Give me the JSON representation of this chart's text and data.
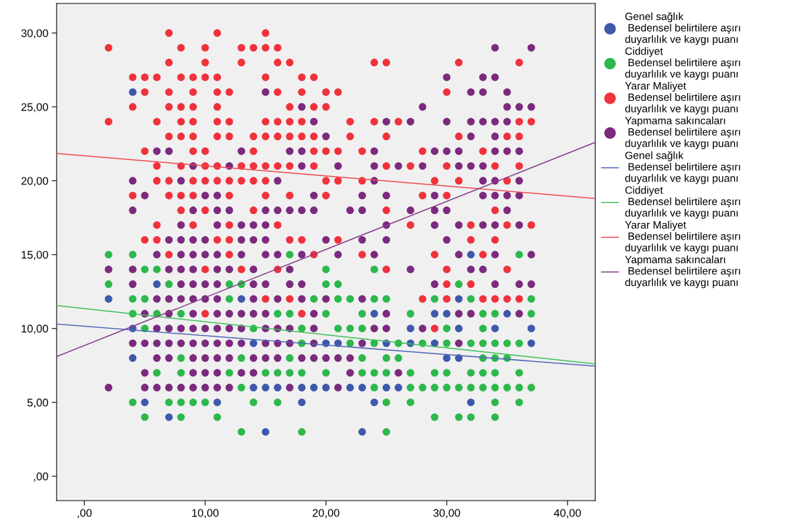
{
  "chart_data": {
    "type": "scatter",
    "xlim": [
      -2.3,
      42.3
    ],
    "ylim": [
      -1.65,
      32
    ],
    "xticks": [
      {
        "value": 0,
        "label": ",00"
      },
      {
        "value": 10,
        "label": "10,00"
      },
      {
        "value": 20,
        "label": "20,00"
      },
      {
        "value": 30,
        "label": "30,00"
      },
      {
        "value": 40,
        "label": "40,00"
      }
    ],
    "yticks": [
      {
        "value": 0,
        "label": ",00"
      },
      {
        "value": 5,
        "label": "5,00"
      },
      {
        "value": 10,
        "label": "10,00"
      },
      {
        "value": 15,
        "label": "15,00"
      },
      {
        "value": 20,
        "label": "20,00"
      },
      {
        "value": 25,
        "label": "25,00"
      },
      {
        "value": 30,
        "label": "30,00"
      }
    ],
    "grid": false,
    "legend": "right",
    "series": [
      {
        "name": "Genel sağlık\n Bedensel belirtilere aşırı\nduyarlılık ve kaygı puanı",
        "marker": "circle",
        "color": "#3e58ac",
        "x": [
          4,
          32,
          6,
          2,
          13,
          31,
          24,
          29,
          30,
          35,
          4,
          27,
          31,
          34,
          37,
          14,
          20,
          21,
          25,
          27,
          29,
          37,
          4,
          30,
          31,
          14,
          15,
          16,
          18,
          19,
          20,
          22,
          23,
          25,
          26,
          5,
          11,
          18,
          24,
          32,
          7,
          15,
          23
        ],
        "values": [
          26,
          15,
          13,
          12,
          12,
          12,
          11,
          11,
          11,
          11,
          10,
          10,
          10,
          10,
          10,
          9,
          9,
          9,
          9,
          9,
          9,
          9,
          8,
          8,
          8,
          6,
          6,
          6,
          6,
          6,
          6,
          6,
          6,
          6,
          6,
          5,
          5,
          5,
          5,
          5,
          4,
          3,
          3
        ]
      },
      {
        "name": "Ciddiyet\n Bedensel belirtilere aşırı\nduyarlılık ve kaygı puanı",
        "marker": "circle",
        "color": "#2db84b",
        "x": [
          2,
          4,
          17,
          36,
          5,
          6,
          20,
          24,
          2,
          7,
          12,
          13,
          20,
          21,
          31,
          4,
          5,
          12,
          19,
          21,
          22,
          24,
          25,
          29,
          32,
          37,
          4,
          6,
          8,
          16,
          17,
          20,
          23,
          27,
          33,
          34,
          37,
          5,
          14,
          18,
          21,
          22,
          23,
          30,
          33,
          18,
          22,
          24,
          26,
          28,
          30,
          32,
          33,
          34,
          35,
          36,
          8,
          13,
          17,
          23,
          25,
          26,
          33,
          34,
          35,
          6,
          8,
          12,
          15,
          16,
          17,
          18,
          20,
          23,
          24,
          25,
          27,
          29,
          30,
          32,
          33,
          34,
          36,
          13,
          24,
          27,
          28,
          29,
          30,
          31,
          32,
          33,
          34,
          35,
          36,
          37,
          4,
          7,
          8,
          9,
          10,
          14,
          16,
          25,
          27,
          34,
          36,
          5,
          8,
          11,
          29,
          31,
          32,
          34,
          13,
          18,
          25
        ],
        "values": [
          15,
          15,
          15,
          15,
          14,
          14,
          14,
          14,
          13,
          13,
          13,
          13,
          13,
          13,
          13,
          12,
          12,
          12,
          12,
          12,
          12,
          12,
          12,
          12,
          12,
          12,
          11,
          11,
          11,
          11,
          11,
          11,
          11,
          11,
          11,
          11,
          11,
          10,
          10,
          10,
          10,
          10,
          10,
          10,
          10,
          9,
          9,
          9,
          9,
          9,
          9,
          9,
          9,
          9,
          9,
          9,
          8,
          8,
          8,
          8,
          8,
          8,
          8,
          8,
          8,
          7,
          7,
          7,
          7,
          7,
          7,
          7,
          7,
          7,
          7,
          7,
          7,
          7,
          7,
          7,
          7,
          7,
          7,
          6,
          6,
          6,
          6,
          6,
          6,
          6,
          6,
          6,
          6,
          6,
          6,
          6,
          5,
          5,
          5,
          5,
          5,
          5,
          5,
          5,
          5,
          5,
          5,
          4,
          4,
          4,
          4,
          4,
          4,
          4,
          3,
          3,
          3
        ]
      },
      {
        "name": "Yarar Maliyet\n Bedensel belirtilere aşırı\nduyarlılık ve kaygı puanı",
        "marker": "circle",
        "color": "#f0323c",
        "x": [
          7,
          11,
          15,
          2,
          8,
          10,
          13,
          14,
          15,
          16,
          7,
          10,
          13,
          16,
          17,
          24,
          25,
          31,
          36,
          4,
          5,
          6,
          8,
          9,
          10,
          11,
          15,
          18,
          19,
          5,
          7,
          9,
          11,
          12,
          16,
          18,
          20,
          21,
          30,
          4,
          7,
          8,
          9,
          11,
          17,
          19,
          20,
          2,
          6,
          8,
          9,
          11,
          12,
          15,
          16,
          17,
          18,
          22,
          24,
          26,
          36,
          37,
          7,
          8,
          9,
          11,
          12,
          14,
          15,
          16,
          17,
          18,
          19,
          22,
          25,
          31,
          35,
          36,
          5,
          9,
          10,
          14,
          19,
          20,
          21,
          23,
          28,
          33,
          6,
          8,
          10,
          11,
          13,
          14,
          15,
          16,
          17,
          19,
          25,
          27,
          30,
          34,
          36,
          6,
          7,
          9,
          10,
          11,
          12,
          13,
          14,
          15,
          20,
          21,
          23,
          29,
          31,
          35,
          4,
          7,
          8,
          9,
          12,
          15,
          17,
          20,
          28,
          30,
          8,
          10,
          14,
          25,
          34,
          6,
          9,
          12,
          16,
          27,
          32,
          35,
          37,
          5,
          6,
          11,
          12,
          17,
          18,
          21,
          32,
          34,
          7,
          12,
          19,
          23,
          29,
          33,
          10,
          13,
          16,
          25,
          30,
          35,
          30,
          32,
          15,
          17,
          28,
          30,
          33,
          34,
          35,
          36,
          10,
          18,
          29
        ],
        "values": [
          30,
          30,
          30,
          29,
          29,
          29,
          29,
          29,
          29,
          29,
          28,
          28,
          28,
          28,
          28,
          28,
          28,
          28,
          28,
          27,
          27,
          27,
          27,
          27,
          27,
          27,
          27,
          27,
          27,
          26,
          26,
          26,
          26,
          26,
          26,
          26,
          26,
          26,
          26,
          25,
          25,
          25,
          25,
          25,
          25,
          25,
          25,
          24,
          24,
          24,
          24,
          24,
          24,
          24,
          24,
          24,
          24,
          24,
          24,
          24,
          24,
          24,
          23,
          23,
          23,
          23,
          23,
          23,
          23,
          23,
          23,
          23,
          23,
          23,
          23,
          23,
          23,
          23,
          22,
          22,
          22,
          22,
          22,
          22,
          22,
          22,
          22,
          22,
          21,
          21,
          21,
          21,
          21,
          21,
          21,
          21,
          21,
          21,
          21,
          21,
          21,
          21,
          21,
          20,
          20,
          20,
          20,
          20,
          20,
          20,
          20,
          20,
          20,
          20,
          20,
          20,
          20,
          20,
          19,
          19,
          19,
          19,
          19,
          19,
          19,
          19,
          19,
          19,
          18,
          18,
          18,
          18,
          18,
          17,
          17,
          17,
          17,
          17,
          17,
          17,
          17,
          16,
          16,
          16,
          16,
          16,
          16,
          16,
          16,
          16,
          15,
          15,
          15,
          15,
          15,
          15,
          14,
          14,
          14,
          14,
          14,
          14,
          13,
          13,
          12,
          12,
          12,
          12,
          12,
          12,
          12,
          12,
          11,
          11,
          10
        ]
      },
      {
        "name": "Yapmama sakıncaları\n Bedensel belirtilere aşırı\nduyarlılık ve kaygı puanı",
        "marker": "circle",
        "color": "#7b2a7e",
        "x": [
          34,
          37,
          30,
          33,
          34,
          15,
          32,
          33,
          35,
          18,
          28,
          35,
          36,
          37,
          19,
          25,
          27,
          30,
          32,
          33,
          34,
          35,
          20,
          32,
          34,
          6,
          7,
          13,
          17,
          18,
          24,
          29,
          30,
          31,
          34,
          35,
          36,
          9,
          12,
          18,
          21,
          24,
          26,
          28,
          31,
          32,
          33,
          4,
          8,
          16,
          24,
          33,
          34,
          36,
          5,
          10,
          11,
          19,
          23,
          25,
          29,
          33,
          34,
          35,
          36,
          4,
          9,
          11,
          12,
          15,
          16,
          17,
          18,
          19,
          22,
          23,
          27,
          29,
          30,
          35,
          8,
          11,
          13,
          14,
          15,
          25,
          29,
          31,
          33,
          34,
          36,
          7,
          8,
          9,
          10,
          13,
          14,
          15,
          20,
          23,
          25,
          30,
          6,
          8,
          9,
          10,
          11,
          13,
          15,
          16,
          18,
          21,
          24,
          31,
          34,
          37,
          2,
          4,
          7,
          8,
          9,
          11,
          12,
          14,
          17,
          27,
          32,
          33,
          4,
          8,
          9,
          10,
          11,
          14,
          15,
          17,
          18,
          29,
          34,
          36,
          37,
          6,
          7,
          8,
          9,
          10,
          11,
          14,
          16,
          18,
          20,
          23,
          5,
          7,
          9,
          11,
          12,
          13,
          14,
          15,
          19,
          25,
          31,
          32,
          36,
          6,
          7,
          8,
          9,
          10,
          11,
          12,
          13,
          15,
          16,
          17,
          19,
          24,
          25,
          28,
          4,
          5,
          6,
          7,
          8,
          9,
          10,
          11,
          12,
          13,
          15,
          16,
          17,
          19,
          23,
          31,
          6,
          7,
          9,
          10,
          11,
          12,
          14,
          15,
          16,
          18,
          19,
          20,
          21,
          22,
          5,
          9,
          10,
          11,
          13,
          14,
          22,
          26,
          2,
          5,
          6,
          7,
          8,
          9,
          10,
          11,
          12,
          17,
          21
        ],
        "values": [
          29,
          29,
          27,
          27,
          27,
          26,
          26,
          26,
          26,
          25,
          25,
          25,
          25,
          25,
          24,
          24,
          24,
          24,
          24,
          24,
          24,
          24,
          23,
          23,
          23,
          22,
          22,
          22,
          22,
          22,
          22,
          22,
          22,
          22,
          22,
          22,
          22,
          21,
          21,
          21,
          21,
          21,
          21,
          21,
          21,
          21,
          21,
          20,
          20,
          20,
          20,
          20,
          20,
          20,
          19,
          19,
          19,
          19,
          19,
          19,
          19,
          19,
          19,
          19,
          19,
          18,
          18,
          18,
          18,
          18,
          18,
          18,
          18,
          18,
          18,
          18,
          18,
          18,
          18,
          18,
          17,
          17,
          17,
          17,
          17,
          17,
          17,
          17,
          17,
          17,
          17,
          16,
          16,
          16,
          16,
          16,
          16,
          16,
          16,
          16,
          16,
          16,
          15,
          15,
          15,
          15,
          15,
          15,
          15,
          15,
          15,
          15,
          15,
          15,
          15,
          15,
          14,
          14,
          14,
          14,
          14,
          14,
          14,
          14,
          14,
          14,
          14,
          14,
          13,
          13,
          13,
          13,
          13,
          13,
          13,
          13,
          13,
          13,
          13,
          13,
          13,
          12,
          12,
          12,
          12,
          12,
          12,
          12,
          12,
          12,
          12,
          12,
          11,
          11,
          11,
          11,
          11,
          11,
          11,
          11,
          11,
          11,
          11,
          11,
          11,
          10,
          10,
          10,
          10,
          10,
          10,
          10,
          10,
          10,
          10,
          10,
          10,
          10,
          10,
          10,
          9,
          9,
          9,
          9,
          9,
          9,
          9,
          9,
          9,
          9,
          9,
          9,
          9,
          9,
          9,
          9,
          8,
          8,
          8,
          8,
          8,
          8,
          8,
          8,
          8,
          8,
          8,
          8,
          8,
          8,
          7,
          7,
          7,
          7,
          7,
          7,
          7,
          7,
          6,
          6,
          6,
          6,
          6,
          6,
          6,
          6,
          6,
          6,
          6
        ]
      },
      {
        "name": "Genel sağlık\n Bedensel belirtilere aşırı\nduyarlılık ve kaygı puanı",
        "type": "line",
        "color": "#5068b8",
        "x": [
          -2.3,
          42.3
        ],
        "values": [
          10.3,
          7.45
        ]
      },
      {
        "name": "Ciddiyet\n Bedensel belirtilere aşırı\nduyarlılık ve kaygı puanı",
        "type": "line",
        "color": "#3cc05a",
        "x": [
          -2.3,
          42.3
        ],
        "values": [
          11.55,
          7.6
        ]
      },
      {
        "name": "Yarar Maliyet\n Bedensel belirtilere aşırı\nduyarlılık ve kaygı puanı",
        "type": "line",
        "color": "#f04850",
        "x": [
          -2.3,
          42.3
        ],
        "values": [
          21.85,
          18.8
        ]
      },
      {
        "name": "Yapmama sakıncaları\n Bedensel belirtilere aşırı\nduyarlılık ve kaygı puanı",
        "type": "line",
        "color": "#84408a",
        "x": [
          -2.3,
          42.3
        ],
        "values": [
          8.1,
          22.6
        ]
      }
    ]
  }
}
